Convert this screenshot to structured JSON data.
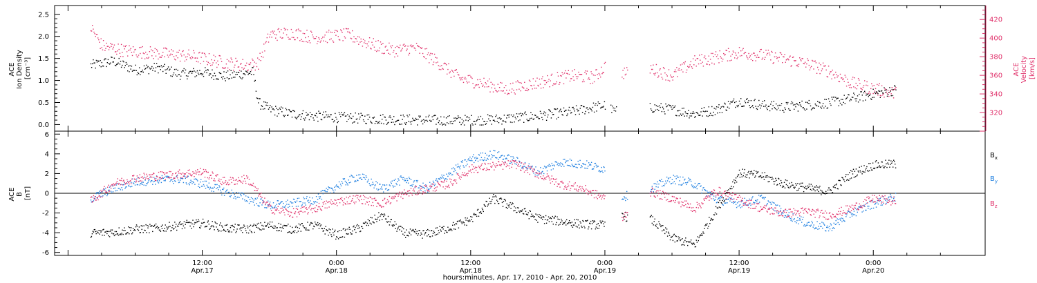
{
  "colors": {
    "black": "#000000",
    "blue": "#1e7fe0",
    "red": "#e0306a"
  },
  "x_axis": {
    "title": "hours:minutes, Apr. 17, 2010 - Apr. 20, 2010",
    "ticks": [
      {
        "hour": 12,
        "time": "12:00",
        "date": "Apr.17"
      },
      {
        "hour": 24,
        "time": "0:00",
        "date": "Apr.18"
      },
      {
        "hour": 36,
        "time": "12:00",
        "date": "Apr.18"
      },
      {
        "hour": 48,
        "time": "0:00",
        "date": "Apr.19"
      },
      {
        "hour": 60,
        "time": "12:00",
        "date": "Apr.19"
      },
      {
        "hour": 72,
        "time": "0:00",
        "date": "Apr.20"
      }
    ]
  },
  "chart_data": [
    {
      "type": "scatter",
      "panel": "top",
      "xrange_hours": [
        -1.2,
        82.0
      ],
      "ylabel_left": [
        "ACE",
        "Ion Density",
        "[cm⁻³]"
      ],
      "ylabel_right": [
        "ACE",
        "Velocity",
        "[km/s]"
      ],
      "left_axis": {
        "range": [
          -0.15,
          2.7
        ],
        "ticks": [
          "0.0",
          "0.5",
          "1.0",
          "1.5",
          "2.0",
          "2.5"
        ]
      },
      "right_axis": {
        "range": [
          300,
          435
        ],
        "ticks": [
          "320",
          "340",
          "360",
          "380",
          "400",
          "420"
        ]
      },
      "series": [
        {
          "axis": "left",
          "color": "black",
          "segments": [
            [
              [
                2.0,
                1.35
              ],
              [
                4.0,
                1.45
              ],
              [
                6.0,
                1.25
              ],
              [
                8.0,
                1.3
              ],
              [
                10.0,
                1.15
              ],
              [
                12.0,
                1.2
              ],
              [
                14.0,
                1.1
              ],
              [
                16.5,
                1.2
              ],
              [
                17.0,
                0.5
              ],
              [
                18.0,
                0.35
              ],
              [
                20.0,
                0.25
              ],
              [
                22.0,
                0.2
              ],
              [
                26.0,
                0.15
              ],
              [
                30.0,
                0.12
              ],
              [
                34.0,
                0.1
              ],
              [
                38.0,
                0.12
              ],
              [
                42.0,
                0.2
              ],
              [
                45.0,
                0.3
              ],
              [
                48.0,
                0.45
              ]
            ],
            [
              [
                48.5,
                0.35
              ],
              [
                49.0,
                0.3
              ]
            ],
            [
              [
                52.0,
                0.4
              ],
              [
                54.0,
                0.35
              ],
              [
                56.0,
                0.25
              ],
              [
                58.0,
                0.35
              ],
              [
                60.0,
                0.55
              ],
              [
                62.0,
                0.45
              ],
              [
                64.0,
                0.4
              ],
              [
                66.0,
                0.45
              ],
              [
                68.0,
                0.5
              ],
              [
                70.0,
                0.6
              ],
              [
                72.0,
                0.7
              ],
              [
                74.0,
                0.8
              ]
            ]
          ]
        },
        {
          "axis": "right",
          "color": "red",
          "segments": [
            [
              [
                2.0,
                412
              ],
              [
                3.0,
                392
              ],
              [
                5.0,
                387
              ],
              [
                8.0,
                384
              ],
              [
                11.0,
                381
              ],
              [
                14.0,
                374
              ],
              [
                16.0,
                371
              ],
              [
                17.0,
                374
              ],
              [
                18.0,
                404
              ],
              [
                20.0,
                406
              ],
              [
                22.0,
                401
              ],
              [
                25.0,
                404
              ],
              [
                27.0,
                394
              ],
              [
                29.0,
                387
              ],
              [
                31.0,
                390
              ],
              [
                33.0,
                375
              ],
              [
                35.0,
                357
              ],
              [
                37.0,
                352
              ],
              [
                39.0,
                345
              ],
              [
                41.0,
                350
              ],
              [
                43.0,
                355
              ],
              [
                45.0,
                360
              ],
              [
                47.0,
                358
              ],
              [
                48.0,
                370
              ]
            ],
            [
              [
                49.5,
                364
              ],
              [
                50.0,
                362
              ]
            ],
            [
              [
                52.0,
                368
              ],
              [
                54.0,
                360
              ],
              [
                56.0,
                375
              ],
              [
                58.0,
                380
              ],
              [
                60.0,
                385
              ],
              [
                62.0,
                382
              ],
              [
                64.0,
                378
              ],
              [
                66.0,
                373
              ],
              [
                68.0,
                365
              ],
              [
                70.0,
                352
              ],
              [
                72.0,
                346
              ],
              [
                74.0,
                341
              ]
            ]
          ]
        }
      ]
    },
    {
      "type": "scatter",
      "panel": "bottom",
      "xrange_hours": [
        -1.2,
        82.0
      ],
      "ylabel_left": [
        "ACE",
        "B",
        "[nT]"
      ],
      "yrange": [
        -6.3,
        6.3
      ],
      "yticks": [
        "-6",
        "-4",
        "-2",
        "0",
        "2",
        "4",
        "6"
      ],
      "zero_line": true,
      "legend": [
        {
          "label": "B",
          "sub": "x",
          "color": "black"
        },
        {
          "label": "B",
          "sub": "y",
          "color": "blue"
        },
        {
          "label": "B",
          "sub": "z",
          "color": "red"
        }
      ],
      "series": [
        {
          "name": "Bx",
          "color": "black",
          "segments": [
            [
              [
                2.0,
                -4.0
              ],
              [
                4.0,
                -3.9
              ],
              [
                6.0,
                -3.6
              ],
              [
                8.0,
                -3.5
              ],
              [
                10.0,
                -3.2
              ],
              [
                12.0,
                -3.0
              ],
              [
                14.0,
                -3.5
              ],
              [
                16.0,
                -3.6
              ],
              [
                18.0,
                -3.2
              ],
              [
                20.0,
                -3.6
              ],
              [
                22.0,
                -3.2
              ],
              [
                24.0,
                -4.2
              ],
              [
                26.0,
                -3.5
              ],
              [
                28.0,
                -2.2
              ],
              [
                30.0,
                -4.0
              ],
              [
                32.0,
                -4.1
              ],
              [
                34.0,
                -3.5
              ],
              [
                36.0,
                -2.6
              ],
              [
                38.0,
                -0.5
              ],
              [
                40.0,
                -1.5
              ],
              [
                42.0,
                -2.5
              ],
              [
                44.0,
                -2.8
              ],
              [
                46.0,
                -3.1
              ],
              [
                48.0,
                -3.2
              ]
            ],
            [
              [
                49.5,
                -2.0
              ],
              [
                50.0,
                -2.5
              ]
            ],
            [
              [
                52.0,
                -2.5
              ],
              [
                54.0,
                -4.5
              ],
              [
                56.0,
                -5.2
              ],
              [
                58.0,
                -1.5
              ],
              [
                60.0,
                2.1
              ],
              [
                62.0,
                1.8
              ],
              [
                64.0,
                1.0
              ],
              [
                66.0,
                0.6
              ],
              [
                68.0,
                0.2
              ],
              [
                70.0,
                2.0
              ],
              [
                72.0,
                2.9
              ],
              [
                74.0,
                3.0
              ]
            ]
          ]
        },
        {
          "name": "By",
          "color": "blue",
          "segments": [
            [
              [
                2.0,
                -0.5
              ],
              [
                4.0,
                0.5
              ],
              [
                6.0,
                1.2
              ],
              [
                8.0,
                1.4
              ],
              [
                10.0,
                1.5
              ],
              [
                12.0,
                1.0
              ],
              [
                14.0,
                0.2
              ],
              [
                16.0,
                -0.5
              ],
              [
                18.0,
                -1.2
              ],
              [
                20.0,
                -1.0
              ],
              [
                22.0,
                -0.6
              ],
              [
                24.0,
                0.8
              ],
              [
                26.0,
                1.8
              ],
              [
                28.0,
                0.5
              ],
              [
                30.0,
                1.5
              ],
              [
                32.0,
                0.5
              ],
              [
                34.0,
                2.0
              ],
              [
                36.0,
                3.5
              ],
              [
                38.0,
                4.0
              ],
              [
                40.0,
                3.3
              ],
              [
                42.0,
                2.2
              ],
              [
                44.0,
                3.2
              ],
              [
                46.0,
                3.0
              ],
              [
                48.0,
                2.5
              ]
            ],
            [
              [
                49.5,
                -0.3
              ],
              [
                50.0,
                -0.2
              ]
            ],
            [
              [
                52.0,
                0.5
              ],
              [
                54.0,
                1.5
              ],
              [
                56.0,
                1.0
              ],
              [
                58.0,
                -0.6
              ],
              [
                60.0,
                -1.0
              ],
              [
                62.0,
                -0.5
              ],
              [
                64.0,
                -2.0
              ],
              [
                66.0,
                -3.0
              ],
              [
                68.0,
                -3.5
              ],
              [
                70.0,
                -2.0
              ],
              [
                72.0,
                -1.0
              ],
              [
                74.0,
                -0.3
              ]
            ]
          ]
        },
        {
          "name": "Bz",
          "color": "red",
          "segments": [
            [
              [
                2.0,
                -0.8
              ],
              [
                4.0,
                1.0
              ],
              [
                6.0,
                1.6
              ],
              [
                8.0,
                1.8
              ],
              [
                10.0,
                2.0
              ],
              [
                12.0,
                2.2
              ],
              [
                14.0,
                1.2
              ],
              [
                16.0,
                1.5
              ],
              [
                18.0,
                -1.5
              ],
              [
                20.0,
                -2.0
              ],
              [
                22.0,
                -1.5
              ],
              [
                24.0,
                -0.8
              ],
              [
                26.0,
                -0.5
              ],
              [
                28.0,
                -1.0
              ],
              [
                30.0,
                0.0
              ],
              [
                32.0,
                0.5
              ],
              [
                34.0,
                1.0
              ],
              [
                36.0,
                2.5
              ],
              [
                38.0,
                2.8
              ],
              [
                40.0,
                3.0
              ],
              [
                42.0,
                2.0
              ],
              [
                44.0,
                1.0
              ],
              [
                46.0,
                0.5
              ],
              [
                48.0,
                -0.5
              ]
            ],
            [
              [
                49.5,
                -2.5
              ],
              [
                50.0,
                -1.8
              ]
            ],
            [
              [
                52.0,
                0.2
              ],
              [
                54.0,
                -0.5
              ],
              [
                56.0,
                -1.5
              ],
              [
                58.0,
                0.3
              ],
              [
                60.0,
                -0.6
              ],
              [
                62.0,
                -1.5
              ],
              [
                64.0,
                -2.0
              ],
              [
                66.0,
                -1.8
              ],
              [
                68.0,
                -2.2
              ],
              [
                70.0,
                -1.5
              ],
              [
                72.0,
                -0.5
              ],
              [
                74.0,
                -0.8
              ]
            ]
          ]
        }
      ]
    }
  ]
}
